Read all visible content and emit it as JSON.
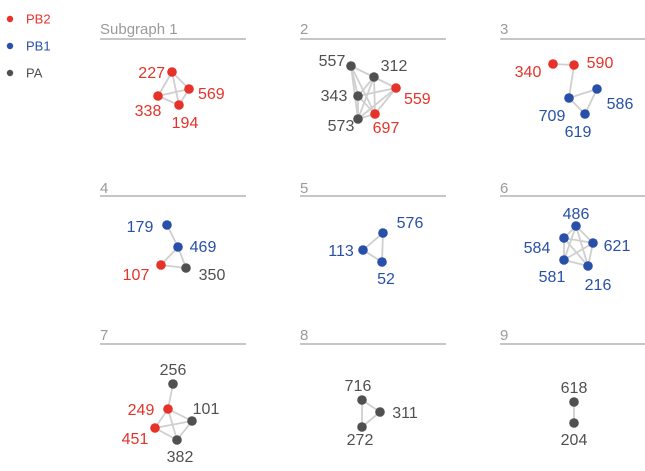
{
  "colors": {
    "PB2": "#e63228",
    "PB1": "#2850a8",
    "PA": "#505050",
    "edge": "#cfcfcf",
    "title": "#9a9a9a",
    "rule": "#b4b4b4"
  },
  "legend": [
    {
      "label": "PB2",
      "group": "PB2"
    },
    {
      "label": "PB1",
      "group": "PB1"
    },
    {
      "label": "PA",
      "group": "PA"
    }
  ],
  "subgraphs": [
    {
      "title": "Subgraph 1",
      "nodes": [
        {
          "id": "227",
          "group": "PB2"
        },
        {
          "id": "569",
          "group": "PB2"
        },
        {
          "id": "338",
          "group": "PB2"
        },
        {
          "id": "194",
          "group": "PB2"
        }
      ],
      "edges": [
        [
          "227",
          "569"
        ],
        [
          "227",
          "338"
        ],
        [
          "227",
          "194"
        ],
        [
          "569",
          "338"
        ],
        [
          "569",
          "194"
        ],
        [
          "338",
          "194"
        ]
      ]
    },
    {
      "title": "2",
      "nodes": [
        {
          "id": "557",
          "group": "PA"
        },
        {
          "id": "312",
          "group": "PA"
        },
        {
          "id": "343",
          "group": "PA"
        },
        {
          "id": "559",
          "group": "PB2"
        },
        {
          "id": "573",
          "group": "PA"
        },
        {
          "id": "697",
          "group": "PB2"
        }
      ],
      "edges": [
        [
          "557",
          "312"
        ],
        [
          "557",
          "343"
        ],
        [
          "557",
          "559"
        ],
        [
          "557",
          "573"
        ],
        [
          "557",
          "697"
        ],
        [
          "312",
          "343"
        ],
        [
          "312",
          "559"
        ],
        [
          "312",
          "573"
        ],
        [
          "312",
          "697"
        ],
        [
          "343",
          "559"
        ],
        [
          "343",
          "573"
        ],
        [
          "343",
          "697"
        ],
        [
          "559",
          "573"
        ],
        [
          "559",
          "697"
        ],
        [
          "573",
          "697"
        ]
      ]
    },
    {
      "title": "3",
      "nodes": [
        {
          "id": "340",
          "group": "PB2"
        },
        {
          "id": "590",
          "group": "PB2"
        },
        {
          "id": "709",
          "group": "PB1"
        },
        {
          "id": "586",
          "group": "PB1"
        },
        {
          "id": "619",
          "group": "PB1"
        }
      ],
      "edges": [
        [
          "340",
          "590"
        ],
        [
          "590",
          "709"
        ],
        [
          "709",
          "586"
        ],
        [
          "709",
          "619"
        ],
        [
          "586",
          "619"
        ]
      ]
    },
    {
      "title": "4",
      "nodes": [
        {
          "id": "179",
          "group": "PB1"
        },
        {
          "id": "469",
          "group": "PB1"
        },
        {
          "id": "107",
          "group": "PB2"
        },
        {
          "id": "350",
          "group": "PA"
        }
      ],
      "edges": [
        [
          "179",
          "469"
        ],
        [
          "469",
          "107"
        ],
        [
          "469",
          "350"
        ],
        [
          "107",
          "350"
        ]
      ]
    },
    {
      "title": "5",
      "nodes": [
        {
          "id": "576",
          "group": "PB1"
        },
        {
          "id": "113",
          "group": "PB1"
        },
        {
          "id": "52",
          "group": "PB1"
        }
      ],
      "edges": [
        [
          "576",
          "113"
        ],
        [
          "576",
          "52"
        ],
        [
          "113",
          "52"
        ]
      ]
    },
    {
      "title": "6",
      "nodes": [
        {
          "id": "486",
          "group": "PB1"
        },
        {
          "id": "584",
          "group": "PB1"
        },
        {
          "id": "621",
          "group": "PB1"
        },
        {
          "id": "581",
          "group": "PB1"
        },
        {
          "id": "216",
          "group": "PB1"
        }
      ],
      "edges": [
        [
          "486",
          "584"
        ],
        [
          "486",
          "621"
        ],
        [
          "486",
          "581"
        ],
        [
          "486",
          "216"
        ],
        [
          "584",
          "621"
        ],
        [
          "584",
          "581"
        ],
        [
          "584",
          "216"
        ],
        [
          "621",
          "581"
        ],
        [
          "621",
          "216"
        ],
        [
          "581",
          "216"
        ]
      ]
    },
    {
      "title": "7",
      "nodes": [
        {
          "id": "256",
          "group": "PA"
        },
        {
          "id": "249",
          "group": "PB2"
        },
        {
          "id": "101",
          "group": "PA"
        },
        {
          "id": "451",
          "group": "PB2"
        },
        {
          "id": "382",
          "group": "PA"
        }
      ],
      "edges": [
        [
          "256",
          "249"
        ],
        [
          "249",
          "101"
        ],
        [
          "249",
          "451"
        ],
        [
          "249",
          "382"
        ],
        [
          "101",
          "451"
        ],
        [
          "101",
          "382"
        ],
        [
          "451",
          "382"
        ]
      ]
    },
    {
      "title": "8",
      "nodes": [
        {
          "id": "716",
          "group": "PA"
        },
        {
          "id": "311",
          "group": "PA"
        },
        {
          "id": "272",
          "group": "PA"
        }
      ],
      "edges": [
        [
          "716",
          "311"
        ],
        [
          "716",
          "272"
        ],
        [
          "311",
          "272"
        ]
      ]
    },
    {
      "title": "9",
      "nodes": [
        {
          "id": "618",
          "group": "PA"
        },
        {
          "id": "204",
          "group": "PA"
        }
      ],
      "edges": [
        [
          "618",
          "204"
        ]
      ]
    }
  ]
}
